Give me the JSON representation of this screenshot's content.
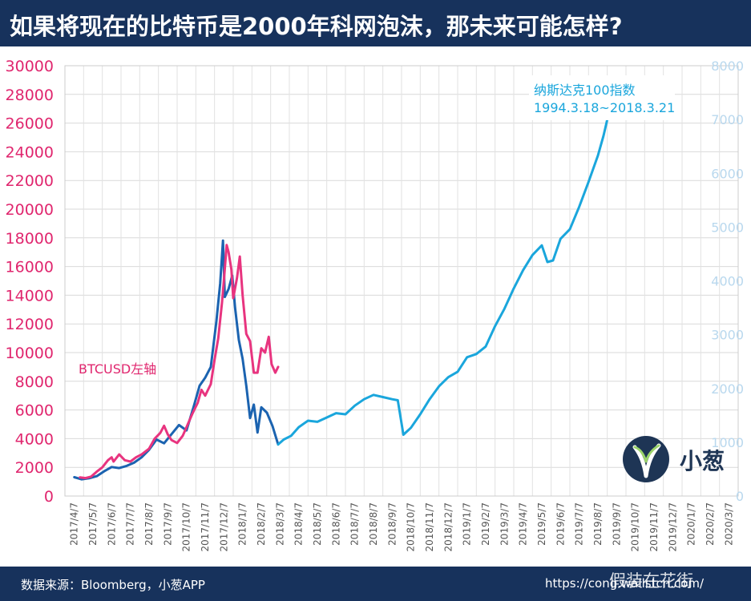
{
  "header": {
    "title": "如果将现在的比特币是2000年科网泡沫，那未来可能怎样?"
  },
  "footer": {
    "source": "数据来源：Bloomberg，小葱APP",
    "url": "https://cong.wallstcn.com/",
    "watermark": "假装在花街"
  },
  "logo": {
    "text": "小葱"
  },
  "colors": {
    "nasdaq_dark": "#1b63b0",
    "nasdaq_light": "#1aa6dc",
    "btc": "#e8347f",
    "header_bg": "#17325c"
  },
  "chart_data": {
    "type": "line",
    "x_ticks": [
      "2017/4/7",
      "2017/5/7",
      "2017/6/7",
      "2017/7/7",
      "2017/8/7",
      "2017/9/7",
      "2017/10/7",
      "2017/11/7",
      "2017/12/7",
      "2018/1/7",
      "2018/2/7",
      "2018/3/7",
      "2018/4/7",
      "2018/5/7",
      "2018/6/7",
      "2018/7/7",
      "2018/8/7",
      "2018/9/7",
      "2018/10/7",
      "2018/11/7",
      "2018/12/7",
      "2019/1/7",
      "2019/2/7",
      "2019/3/7",
      "2019/4/7",
      "2019/5/7",
      "2019/6/7",
      "2019/7/7",
      "2019/8/7",
      "2019/9/7",
      "2019/10/7",
      "2019/11/7",
      "2019/12/7",
      "2020/1/7",
      "2020/2/7",
      "2020/3/7"
    ],
    "y_left": {
      "ticks": [
        "0",
        "2000",
        "4000",
        "6000",
        "8000",
        "10000",
        "12000",
        "14000",
        "16000",
        "18000",
        "20000",
        "22000",
        "24000",
        "26000",
        "28000",
        "30000"
      ],
      "ylim": [
        0,
        30000
      ]
    },
    "y_right": {
      "ticks": [
        "0",
        "1000",
        "2000",
        "3000",
        "4000",
        "5000",
        "6000",
        "7000",
        "8000"
      ],
      "ylim": [
        0,
        8000
      ]
    },
    "annotations": {
      "btc": "BTCUSD左轴",
      "nasdaq_line1": "纳斯达克100指数",
      "nasdaq_line2": "1994.3.18~2018.3.21"
    },
    "series": [
      {
        "name": "BTCUSD左轴",
        "axis": "left",
        "color": "#e8347f",
        "points": [
          [
            0.3,
            1300
          ],
          [
            0.6,
            1250
          ],
          [
            0.9,
            1350
          ],
          [
            1.2,
            1700
          ],
          [
            1.5,
            2000
          ],
          [
            1.8,
            2500
          ],
          [
            2.0,
            2700
          ],
          [
            2.1,
            2400
          ],
          [
            2.4,
            2900
          ],
          [
            2.7,
            2500
          ],
          [
            3.0,
            2400
          ],
          [
            3.3,
            2700
          ],
          [
            3.6,
            2900
          ],
          [
            4.0,
            3300
          ],
          [
            4.3,
            4000
          ],
          [
            4.6,
            4400
          ],
          [
            4.8,
            4900
          ],
          [
            5.0,
            4300
          ],
          [
            5.2,
            3900
          ],
          [
            5.5,
            3700
          ],
          [
            5.8,
            4200
          ],
          [
            6.0,
            4800
          ],
          [
            6.3,
            5700
          ],
          [
            6.6,
            6500
          ],
          [
            6.8,
            7400
          ],
          [
            7.0,
            7000
          ],
          [
            7.3,
            7800
          ],
          [
            7.5,
            9500
          ],
          [
            7.7,
            11000
          ],
          [
            7.9,
            13500
          ],
          [
            8.0,
            15000
          ],
          [
            8.15,
            17500
          ],
          [
            8.25,
            17000
          ],
          [
            8.4,
            15800
          ],
          [
            8.5,
            13800
          ],
          [
            8.7,
            15200
          ],
          [
            8.85,
            16700
          ],
          [
            9.0,
            14000
          ],
          [
            9.2,
            11300
          ],
          [
            9.4,
            10800
          ],
          [
            9.6,
            8600
          ],
          [
            9.8,
            8600
          ],
          [
            10.0,
            10300
          ],
          [
            10.2,
            10000
          ],
          [
            10.4,
            11100
          ],
          [
            10.55,
            9200
          ],
          [
            10.75,
            8600
          ],
          [
            10.9,
            9000
          ]
        ]
      },
      {
        "name": "纳斯达克100指数",
        "axis": "right",
        "color": "#1b63b0",
        "points": [
          [
            0.0,
            350
          ],
          [
            0.4,
            310
          ],
          [
            0.8,
            330
          ],
          [
            1.2,
            370
          ],
          [
            1.6,
            460
          ],
          [
            2.0,
            540
          ],
          [
            2.4,
            520
          ],
          [
            2.8,
            560
          ],
          [
            3.2,
            620
          ],
          [
            3.6,
            720
          ],
          [
            4.0,
            860
          ],
          [
            4.4,
            1050
          ],
          [
            4.8,
            980
          ],
          [
            5.2,
            1150
          ],
          [
            5.6,
            1320
          ],
          [
            6.0,
            1220
          ],
          [
            6.4,
            1680
          ],
          [
            6.7,
            2050
          ],
          [
            7.0,
            2200
          ],
          [
            7.3,
            2400
          ],
          [
            7.6,
            3250
          ],
          [
            7.8,
            3950
          ],
          [
            7.95,
            4750
          ],
          [
            8.05,
            3700
          ],
          [
            8.25,
            3850
          ],
          [
            8.45,
            4100
          ],
          [
            8.6,
            3500
          ],
          [
            8.8,
            2900
          ],
          [
            9.0,
            2550
          ],
          [
            9.2,
            2050
          ],
          [
            9.4,
            1450
          ],
          [
            9.6,
            1700
          ],
          [
            9.8,
            1180
          ],
          [
            10.0,
            1650
          ],
          [
            10.3,
            1550
          ],
          [
            10.6,
            1300
          ],
          [
            10.9,
            960
          ]
        ]
      },
      {
        "name": "纳斯达克100指数 (续)",
        "axis": "right",
        "color": "#1aa6dc",
        "points": [
          [
            10.9,
            960
          ],
          [
            11.2,
            1050
          ],
          [
            11.6,
            1120
          ],
          [
            12.0,
            1280
          ],
          [
            12.5,
            1400
          ],
          [
            13.0,
            1380
          ],
          [
            13.5,
            1460
          ],
          [
            14.0,
            1540
          ],
          [
            14.5,
            1520
          ],
          [
            15.0,
            1680
          ],
          [
            15.5,
            1800
          ],
          [
            16.0,
            1880
          ],
          [
            16.5,
            1840
          ],
          [
            17.0,
            1800
          ],
          [
            17.3,
            1780
          ],
          [
            17.6,
            1140
          ],
          [
            18.0,
            1270
          ],
          [
            18.5,
            1520
          ],
          [
            19.0,
            1800
          ],
          [
            19.5,
            2040
          ],
          [
            20.0,
            2210
          ],
          [
            20.5,
            2310
          ],
          [
            21.0,
            2580
          ],
          [
            21.5,
            2640
          ],
          [
            22.0,
            2780
          ],
          [
            22.5,
            3160
          ],
          [
            23.0,
            3480
          ],
          [
            23.5,
            3860
          ],
          [
            24.0,
            4200
          ],
          [
            24.5,
            4480
          ],
          [
            25.0,
            4660
          ],
          [
            25.3,
            4350
          ],
          [
            25.6,
            4380
          ],
          [
            26.0,
            4780
          ],
          [
            26.5,
            4960
          ],
          [
            27.0,
            5380
          ],
          [
            27.5,
            5840
          ],
          [
            28.0,
            6330
          ],
          [
            28.3,
            6700
          ],
          [
            28.5,
            7000
          ],
          [
            28.6,
            7100
          ]
        ]
      }
    ]
  }
}
